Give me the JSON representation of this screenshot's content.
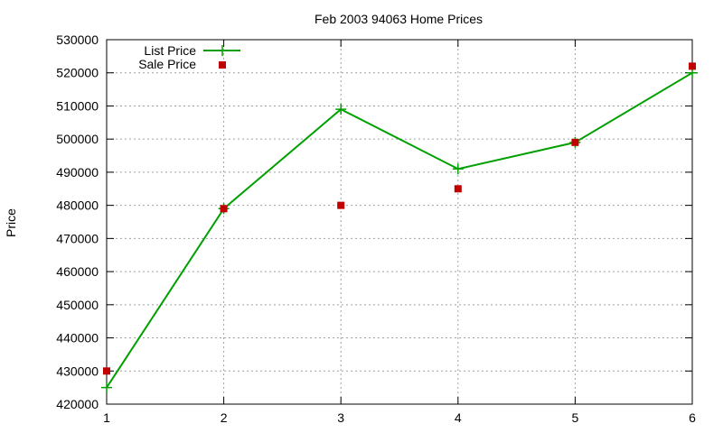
{
  "chart_data": {
    "type": "line",
    "title": "Feb 2003 94063 Home Prices",
    "xlabel": "",
    "ylabel": "Price",
    "x": [
      1,
      2,
      3,
      4,
      5,
      6
    ],
    "xlim": [
      1,
      6
    ],
    "ylim": [
      420000,
      530000
    ],
    "xticks": [
      "1",
      "2",
      "3",
      "4",
      "5",
      "6"
    ],
    "yticks": [
      "420000",
      "430000",
      "440000",
      "450000",
      "460000",
      "470000",
      "480000",
      "490000",
      "500000",
      "510000",
      "520000",
      "530000"
    ],
    "grid": true,
    "legend_position": "top-left",
    "series": [
      {
        "name": "List Price",
        "style": "line+cross",
        "color": "#00a000",
        "values": [
          425000,
          479000,
          509000,
          491000,
          499000,
          520000
        ]
      },
      {
        "name": "Sale Price",
        "style": "square",
        "color": "#c00000",
        "values": [
          430000,
          479000,
          480000,
          485000,
          499000,
          522000
        ]
      }
    ]
  }
}
